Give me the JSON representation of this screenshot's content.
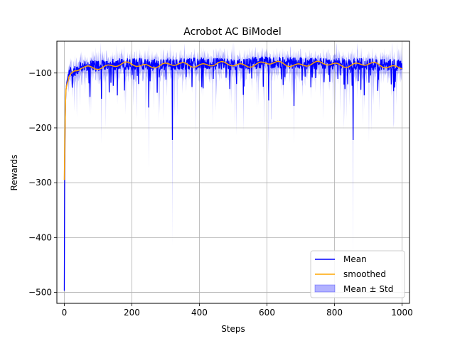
{
  "chart_data": {
    "type": "line",
    "title": "Acrobot AC BiModel",
    "xlabel": "Steps",
    "ylabel": "Rewards",
    "xlim": [
      -22,
      1022
    ],
    "ylim": [
      -520,
      -42
    ],
    "xticks": [
      0,
      200,
      400,
      600,
      800,
      1000
    ],
    "yticks": [
      -500,
      -400,
      -300,
      -200,
      -100
    ],
    "grid": true,
    "legend_position": "lower-right",
    "colors": {
      "mean": "#0000ff",
      "smoothed": "#ffa500",
      "band": "#0000ff"
    },
    "series": [
      {
        "name": "Mean",
        "kind": "line",
        "color": "#0000ff"
      },
      {
        "name": "smoothed",
        "kind": "line",
        "color": "#ffa500"
      },
      {
        "name": "Mean ± Std",
        "kind": "band",
        "color": "#0000ff"
      }
    ],
    "keypoints": {
      "x": [
        0,
        1,
        2,
        3,
        4,
        5,
        8,
        12,
        20,
        30,
        50,
        100,
        150,
        200,
        300,
        400,
        500,
        600,
        700,
        800,
        900,
        1000
      ],
      "mean": [
        -497,
        -300,
        -240,
        -180,
        -150,
        -130,
        -115,
        -105,
        -98,
        -95,
        -90,
        -86,
        -84,
        -83,
        -85,
        -82,
        -84,
        -81,
        -82,
        -83,
        -84,
        -86
      ],
      "smoothed": [
        -295,
        -250,
        -210,
        -170,
        -145,
        -130,
        -120,
        -113,
        -105,
        -98,
        -92,
        -88,
        -86,
        -85,
        -86,
        -84,
        -85,
        -83,
        -84,
        -84,
        -85,
        -88
      ]
    },
    "notable_dips": [
      {
        "x": 250,
        "mean": -163,
        "lower": -275
      },
      {
        "x": 320,
        "mean": -222,
        "lower": -415
      },
      {
        "x": 530,
        "mean": -140,
        "lower": -207
      },
      {
        "x": 605,
        "mean": -150,
        "lower": -250
      },
      {
        "x": 680,
        "mean": -160,
        "lower": -230
      },
      {
        "x": 855,
        "mean": -222,
        "lower": -430
      },
      {
        "x": 110,
        "mean": -147,
        "lower": -230
      },
      {
        "x": 975,
        "mean": -133,
        "lower": -200
      }
    ]
  }
}
